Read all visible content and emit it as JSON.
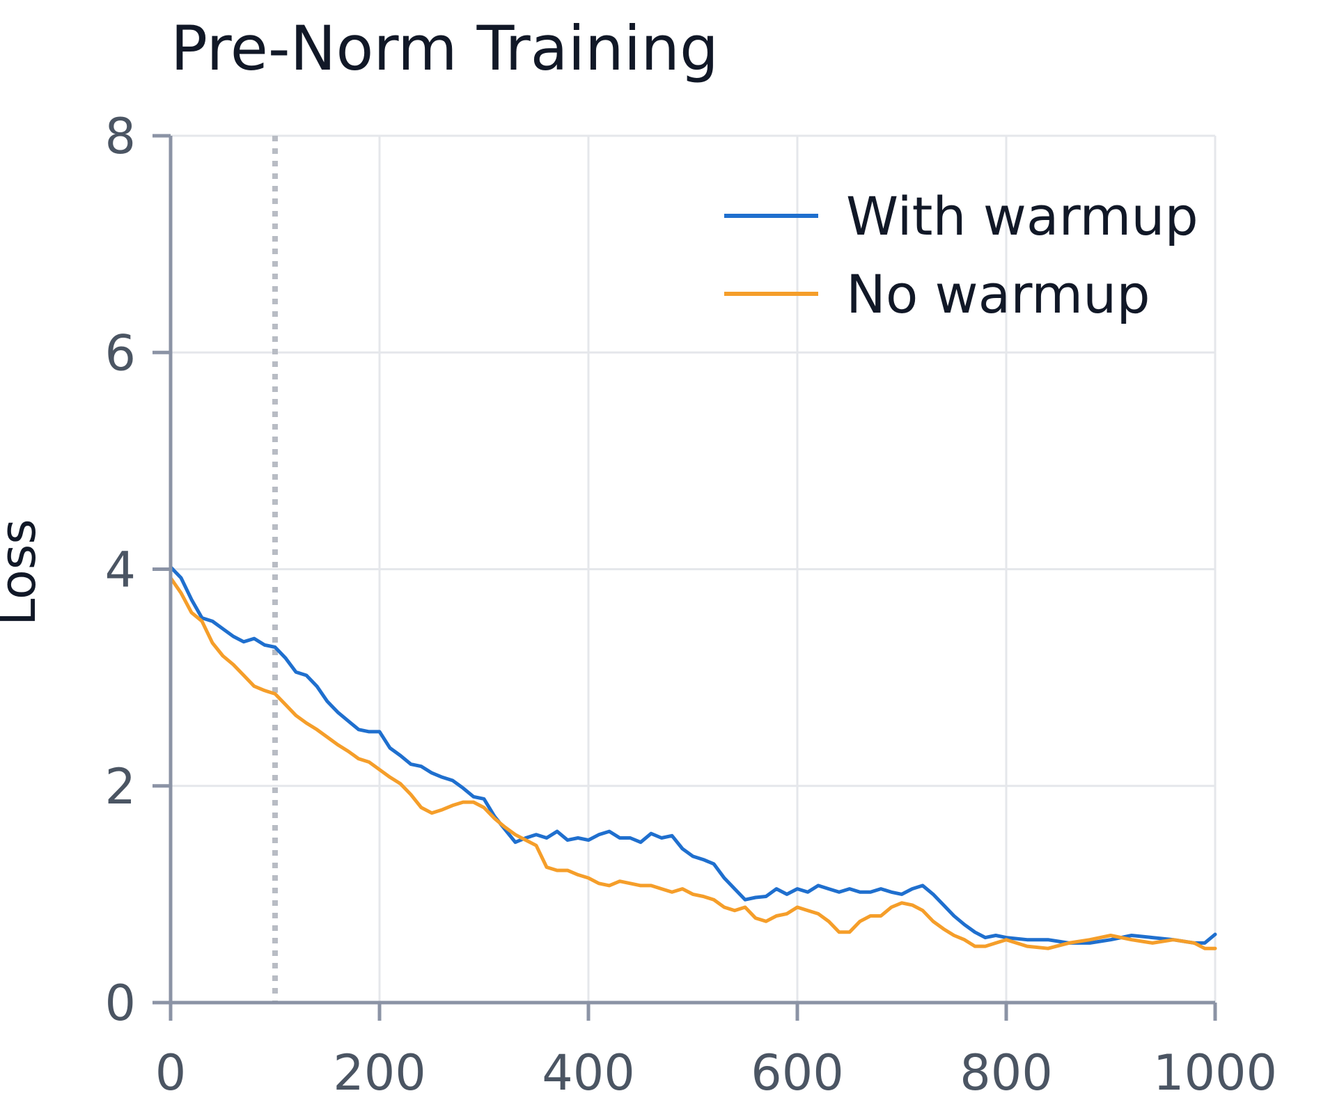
{
  "chart_data": {
    "type": "line",
    "title": "Pre-Norm Training",
    "xlabel": "",
    "ylabel": "Loss",
    "xlim": [
      0,
      1000
    ],
    "ylim": [
      0,
      8
    ],
    "xticks": [
      0,
      200,
      400,
      600,
      800,
      1000
    ],
    "yticks": [
      0,
      2,
      4,
      6,
      8
    ],
    "grid": true,
    "legend": "top-right",
    "reference_line_x": 100,
    "colors": {
      "With warmup": "#1f6fce",
      "No warmup": "#f59e2a"
    },
    "series": [
      {
        "name": "With warmup",
        "x": [
          0,
          10,
          20,
          30,
          40,
          50,
          60,
          70,
          80,
          90,
          100,
          110,
          120,
          130,
          140,
          150,
          160,
          170,
          180,
          190,
          200,
          210,
          220,
          230,
          240,
          250,
          260,
          270,
          280,
          290,
          300,
          310,
          320,
          330,
          340,
          350,
          360,
          370,
          380,
          390,
          400,
          410,
          420,
          430,
          440,
          450,
          460,
          470,
          480,
          490,
          500,
          510,
          520,
          530,
          540,
          550,
          560,
          570,
          580,
          590,
          600,
          610,
          620,
          630,
          640,
          650,
          660,
          670,
          680,
          690,
          700,
          710,
          720,
          730,
          740,
          750,
          760,
          770,
          780,
          790,
          800,
          820,
          840,
          860,
          880,
          900,
          920,
          940,
          960,
          980,
          990,
          1000
        ],
        "y": [
          4.02,
          3.92,
          3.72,
          3.55,
          3.52,
          3.45,
          3.38,
          3.33,
          3.36,
          3.3,
          3.28,
          3.18,
          3.05,
          3.02,
          2.92,
          2.78,
          2.68,
          2.6,
          2.52,
          2.5,
          2.5,
          2.35,
          2.28,
          2.2,
          2.18,
          2.12,
          2.08,
          2.05,
          1.98,
          1.9,
          1.88,
          1.72,
          1.6,
          1.48,
          1.52,
          1.55,
          1.52,
          1.58,
          1.5,
          1.52,
          1.5,
          1.55,
          1.58,
          1.52,
          1.52,
          1.48,
          1.56,
          1.52,
          1.54,
          1.42,
          1.35,
          1.32,
          1.28,
          1.15,
          1.05,
          0.95,
          0.97,
          0.98,
          1.05,
          1.0,
          1.05,
          1.02,
          1.08,
          1.05,
          1.02,
          1.05,
          1.02,
          1.02,
          1.05,
          1.02,
          1.0,
          1.05,
          1.08,
          1.0,
          0.9,
          0.8,
          0.72,
          0.65,
          0.6,
          0.62,
          0.6,
          0.58,
          0.58,
          0.55,
          0.55,
          0.58,
          0.62,
          0.6,
          0.58,
          0.55,
          0.55,
          0.63
        ]
      },
      {
        "name": "No warmup",
        "x": [
          0,
          10,
          20,
          30,
          40,
          50,
          60,
          70,
          80,
          90,
          100,
          110,
          120,
          130,
          140,
          150,
          160,
          170,
          180,
          190,
          200,
          210,
          220,
          230,
          240,
          250,
          260,
          270,
          280,
          290,
          300,
          310,
          320,
          330,
          340,
          350,
          360,
          370,
          380,
          390,
          400,
          410,
          420,
          430,
          440,
          450,
          460,
          470,
          480,
          490,
          500,
          510,
          520,
          530,
          540,
          550,
          560,
          570,
          580,
          590,
          600,
          610,
          620,
          630,
          640,
          650,
          660,
          670,
          680,
          690,
          700,
          710,
          720,
          730,
          740,
          750,
          760,
          770,
          780,
          790,
          800,
          820,
          840,
          860,
          880,
          900,
          920,
          940,
          960,
          980,
          990,
          1000
        ],
        "y": [
          3.92,
          3.78,
          3.6,
          3.52,
          3.32,
          3.2,
          3.12,
          3.02,
          2.92,
          2.88,
          2.85,
          2.75,
          2.65,
          2.58,
          2.52,
          2.45,
          2.38,
          2.32,
          2.25,
          2.22,
          2.15,
          2.08,
          2.02,
          1.92,
          1.8,
          1.75,
          1.78,
          1.82,
          1.85,
          1.85,
          1.8,
          1.7,
          1.62,
          1.55,
          1.5,
          1.45,
          1.25,
          1.22,
          1.22,
          1.18,
          1.15,
          1.1,
          1.08,
          1.12,
          1.1,
          1.08,
          1.08,
          1.05,
          1.02,
          1.05,
          1.0,
          0.98,
          0.95,
          0.88,
          0.85,
          0.88,
          0.78,
          0.75,
          0.8,
          0.82,
          0.88,
          0.85,
          0.82,
          0.75,
          0.65,
          0.65,
          0.75,
          0.8,
          0.8,
          0.88,
          0.92,
          0.9,
          0.85,
          0.75,
          0.68,
          0.62,
          0.58,
          0.52,
          0.52,
          0.55,
          0.58,
          0.52,
          0.5,
          0.55,
          0.58,
          0.62,
          0.58,
          0.55,
          0.58,
          0.55,
          0.5,
          0.5
        ]
      }
    ]
  }
}
